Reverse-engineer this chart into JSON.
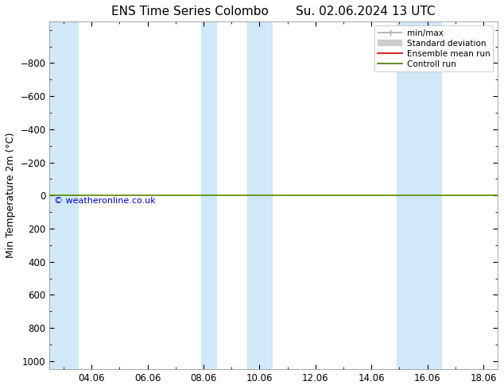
{
  "title1": "ENS Time Series Colombo",
  "title2": "Su. 02.06.2024 13 UTC",
  "ylabel": "Min Temperature 2m (°C)",
  "ylim_top": -1050,
  "ylim_bottom": 1050,
  "yticks": [
    -800,
    -600,
    -400,
    -200,
    0,
    200,
    400,
    600,
    800,
    1000
  ],
  "xlim": [
    2.5,
    18.5
  ],
  "xtick_labels": [
    "04.06",
    "06.06",
    "08.06",
    "10.06",
    "12.06",
    "14.06",
    "16.06",
    "18.06"
  ],
  "xtick_positions": [
    4,
    6,
    8,
    10,
    12,
    14,
    16,
    18
  ],
  "shaded_columns": [
    {
      "start": 2.5,
      "end": 3.5
    },
    {
      "start": 7.9,
      "end": 8.45
    },
    {
      "start": 9.55,
      "end": 10.45
    },
    {
      "start": 14.9,
      "end": 16.5
    }
  ],
  "hline_y": 0,
  "hline_color": "#558800",
  "hline_linewidth": 1.2,
  "bg_color": "#ffffff",
  "plot_bg_color": "#ffffff",
  "shade_color": "#d0e8f8",
  "legend_items": [
    {
      "label": "min/max",
      "color": "#aaaaaa",
      "lw": 1.2
    },
    {
      "label": "Standard deviation",
      "color": "#cccccc",
      "lw": 6
    },
    {
      "label": "Ensemble mean run",
      "color": "#cc0000",
      "lw": 1.2
    },
    {
      "label": "Controll run",
      "color": "#447700",
      "lw": 1.2
    }
  ],
  "copyright_text": "© weatheronline.co.uk",
  "copyright_color": "#0000cc",
  "title_fontsize": 11,
  "ylabel_fontsize": 9,
  "tick_fontsize": 8.5,
  "legend_fontsize": 7.5
}
